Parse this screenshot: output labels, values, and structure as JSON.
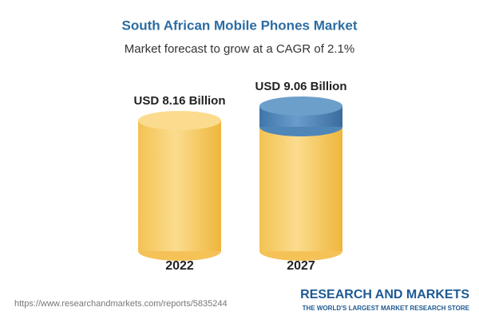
{
  "chart_data": {
    "type": "cylinder",
    "title": "South African Mobile Phones Market",
    "subtitle": "Market forecast to grow at a CAGR of 2.1%",
    "categories": [
      "2022",
      "2027"
    ],
    "values": [
      8.16,
      9.06
    ],
    "value_labels": [
      "USD 8.16 Billion",
      "USD 9.06 Billion"
    ],
    "color": "#f4c257",
    "highlight_color": "#4f86b8"
  },
  "footer": {
    "url": "https://www.researchandmarkets.com/reports/5835244",
    "brand": "RESEARCH AND MARKETS",
    "tagline": "THE WORLD'S LARGEST MARKET RESEARCH STORE"
  }
}
